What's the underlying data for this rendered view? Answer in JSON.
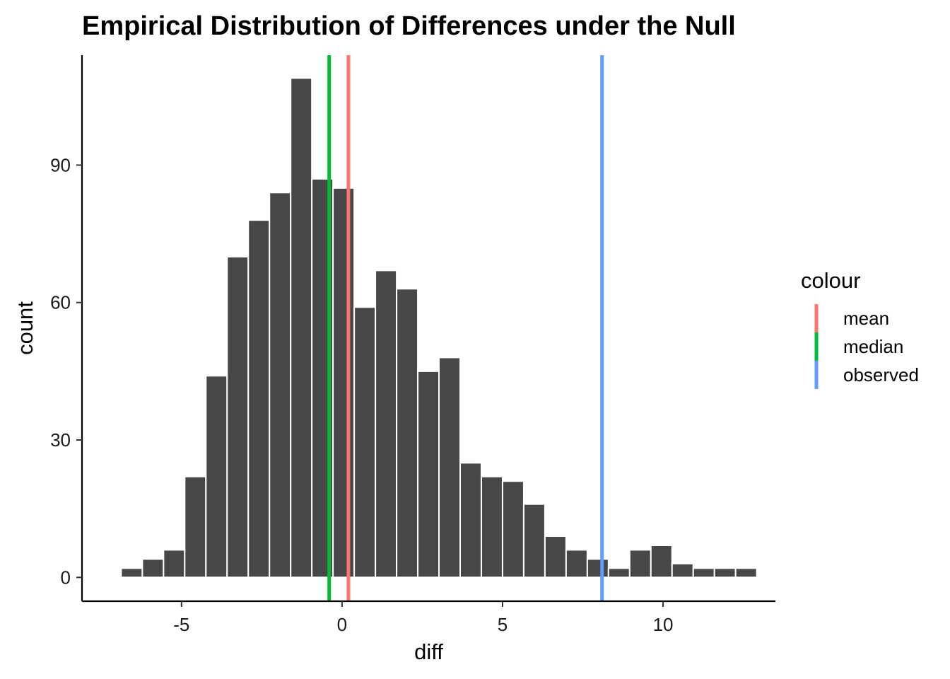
{
  "chart_data": {
    "type": "bar",
    "title": "Empirical Distribution of Differences under the Null",
    "xlabel": "diff",
    "ylabel": "count",
    "xlim": [
      -8.1,
      13.5
    ],
    "ylim": [
      -5.2,
      114
    ],
    "x_ticks": [
      -5,
      0,
      5,
      10
    ],
    "y_ticks": [
      0,
      30,
      60,
      90
    ],
    "x_tick_labels": [
      "-5",
      "0",
      "5",
      "10"
    ],
    "y_tick_labels": [
      "0",
      "30",
      "60",
      "90"
    ],
    "bin_width": 0.66,
    "bins": [
      {
        "center": -6.55,
        "count": 2
      },
      {
        "center": -5.89,
        "count": 4
      },
      {
        "center": -5.23,
        "count": 6
      },
      {
        "center": -4.57,
        "count": 22
      },
      {
        "center": -3.91,
        "count": 44
      },
      {
        "center": -3.25,
        "count": 70
      },
      {
        "center": -2.59,
        "count": 78
      },
      {
        "center": -1.93,
        "count": 84
      },
      {
        "center": -1.27,
        "count": 109
      },
      {
        "center": -0.61,
        "count": 87
      },
      {
        "center": 0.05,
        "count": 85
      },
      {
        "center": 0.71,
        "count": 59
      },
      {
        "center": 1.37,
        "count": 67
      },
      {
        "center": 2.03,
        "count": 63
      },
      {
        "center": 2.69,
        "count": 45
      },
      {
        "center": 3.35,
        "count": 48
      },
      {
        "center": 4.01,
        "count": 25
      },
      {
        "center": 4.67,
        "count": 22
      },
      {
        "center": 5.33,
        "count": 21
      },
      {
        "center": 5.99,
        "count": 16
      },
      {
        "center": 6.65,
        "count": 9
      },
      {
        "center": 7.31,
        "count": 6
      },
      {
        "center": 7.97,
        "count": 4
      },
      {
        "center": 8.63,
        "count": 2
      },
      {
        "center": 9.29,
        "count": 6
      },
      {
        "center": 9.95,
        "count": 7
      },
      {
        "center": 10.61,
        "count": 3
      },
      {
        "center": 11.27,
        "count": 2
      },
      {
        "center": 11.93,
        "count": 2
      },
      {
        "center": 12.59,
        "count": 2
      }
    ],
    "bar_color": "#474747",
    "vlines": [
      {
        "name": "mean",
        "x": 0.2,
        "color": "#F8766D"
      },
      {
        "name": "median",
        "x": -0.4,
        "color": "#00BA38"
      },
      {
        "name": "observed",
        "x": 8.1,
        "color": "#619CFF"
      }
    ],
    "legend": {
      "title": "colour",
      "position": "right",
      "items": [
        "mean",
        "median",
        "observed"
      ]
    },
    "grid": false
  }
}
